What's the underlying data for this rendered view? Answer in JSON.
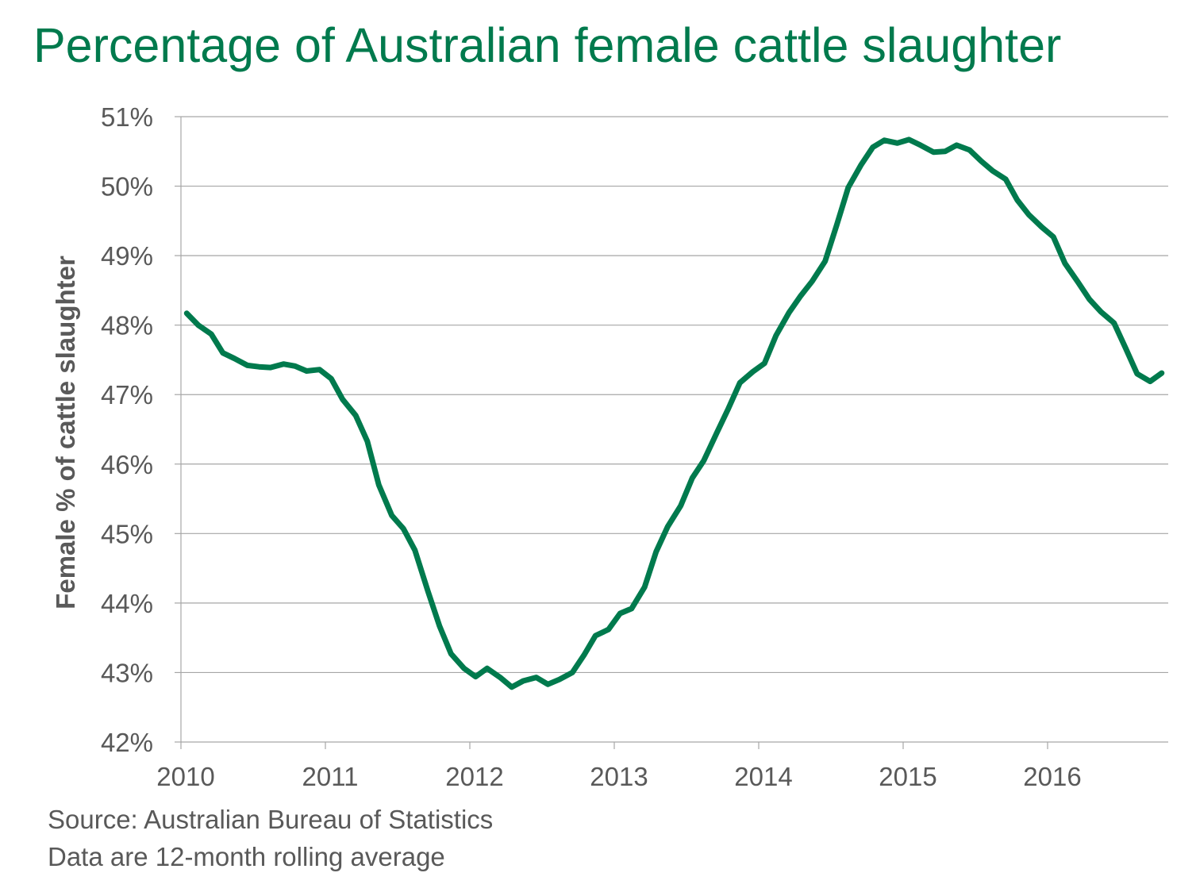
{
  "chart_data": {
    "type": "line",
    "title": "Percentage of Australian female cattle slaughter",
    "ylabel": "Female % of cattle slaughter",
    "xlabel": "",
    "ylim": [
      42,
      51
    ],
    "xlim": [
      2010,
      2016.83
    ],
    "y_ticks": [
      "42%",
      "43%",
      "44%",
      "45%",
      "46%",
      "47%",
      "48%",
      "49%",
      "50%",
      "51%"
    ],
    "y_tick_values": [
      42,
      43,
      44,
      45,
      46,
      47,
      48,
      49,
      50,
      51
    ],
    "x_ticks": [
      "2010",
      "2011",
      "2012",
      "2013",
      "2014",
      "2015",
      "2016"
    ],
    "x_tick_values": [
      2010,
      2011,
      2012,
      2013,
      2014,
      2015,
      2016
    ],
    "grid": "horizontal",
    "legend": "none",
    "line_color": "#007A4D",
    "series": [
      {
        "x": [
          2010.04,
          2010.12,
          2010.21,
          2010.29,
          2010.37,
          2010.46,
          2010.54,
          2010.62,
          2010.71,
          2010.79,
          2010.87,
          2010.96,
          2011.04,
          2011.12,
          2011.21,
          2011.29,
          2011.37,
          2011.46,
          2011.54,
          2011.62,
          2011.71,
          2011.79,
          2011.87,
          2011.96,
          2012.04,
          2012.12,
          2012.21,
          2012.29,
          2012.37,
          2012.46,
          2012.54,
          2012.62,
          2012.71,
          2012.79,
          2012.87,
          2012.96,
          2013.04,
          2013.12,
          2013.21,
          2013.29,
          2013.37,
          2013.46,
          2013.54,
          2013.62,
          2013.71,
          2013.79,
          2013.87,
          2013.96,
          2014.04,
          2014.12,
          2014.21,
          2014.29,
          2014.37,
          2014.46,
          2014.54,
          2014.62,
          2014.71,
          2014.79,
          2014.87,
          2014.96,
          2015.04,
          2015.12,
          2015.21,
          2015.29,
          2015.37,
          2015.46,
          2015.54,
          2015.62,
          2015.71,
          2015.79,
          2015.87,
          2015.96,
          2016.04,
          2016.12,
          2016.21,
          2016.29,
          2016.37,
          2016.46,
          2016.54,
          2016.62,
          2016.71,
          2016.79
        ],
        "values": [
          48.17,
          48.0,
          47.87,
          47.6,
          47.52,
          47.42,
          47.4,
          47.39,
          47.44,
          47.41,
          47.34,
          47.36,
          47.23,
          46.93,
          46.7,
          46.33,
          45.7,
          45.26,
          45.07,
          44.76,
          44.17,
          43.67,
          43.27,
          43.06,
          42.94,
          43.06,
          42.93,
          42.79,
          42.88,
          42.93,
          42.83,
          42.9,
          43.0,
          43.25,
          43.53,
          43.62,
          43.85,
          43.92,
          44.23,
          44.74,
          45.1,
          45.4,
          45.8,
          46.05,
          46.45,
          46.8,
          47.17,
          47.33,
          47.45,
          47.85,
          48.18,
          48.42,
          48.63,
          48.92,
          49.44,
          49.98,
          50.31,
          50.56,
          50.66,
          50.62,
          50.67,
          50.59,
          50.49,
          50.5,
          50.59,
          50.52,
          50.36,
          50.22,
          50.1,
          49.8,
          49.59,
          49.41,
          49.27,
          48.89,
          48.62,
          48.37,
          48.19,
          48.03,
          47.67,
          47.3,
          47.19,
          47.31
        ]
      }
    ]
  },
  "source": {
    "line1": "Source: Australian Bureau of Statistics",
    "line2": "Data are 12-month rolling average"
  }
}
